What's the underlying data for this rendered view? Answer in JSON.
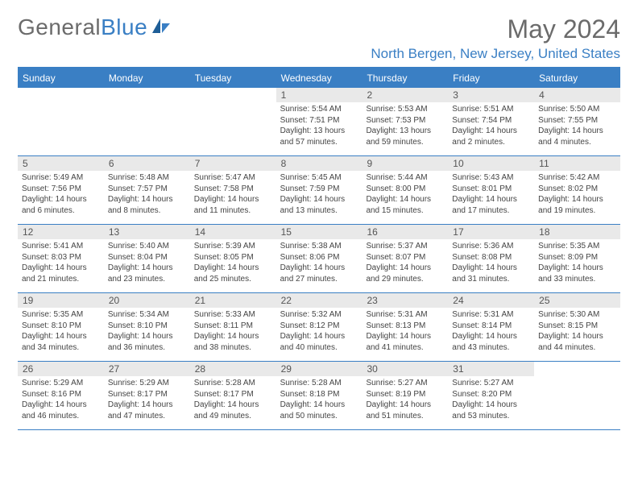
{
  "logo": {
    "text_gray": "General",
    "text_blue": "Blue"
  },
  "title": "May 2024",
  "location": "North Bergen, New Jersey, United States",
  "day_names": [
    "Sunday",
    "Monday",
    "Tuesday",
    "Wednesday",
    "Thursday",
    "Friday",
    "Saturday"
  ],
  "colors": {
    "accent": "#3a7fc4",
    "header_text": "#6b6b6b",
    "daynum_bg": "#e9e9e9"
  },
  "weeks": [
    [
      {
        "n": "",
        "lines": []
      },
      {
        "n": "",
        "lines": []
      },
      {
        "n": "",
        "lines": []
      },
      {
        "n": "1",
        "lines": [
          "Sunrise: 5:54 AM",
          "Sunset: 7:51 PM",
          "Daylight: 13 hours",
          "and 57 minutes."
        ]
      },
      {
        "n": "2",
        "lines": [
          "Sunrise: 5:53 AM",
          "Sunset: 7:53 PM",
          "Daylight: 13 hours",
          "and 59 minutes."
        ]
      },
      {
        "n": "3",
        "lines": [
          "Sunrise: 5:51 AM",
          "Sunset: 7:54 PM",
          "Daylight: 14 hours",
          "and 2 minutes."
        ]
      },
      {
        "n": "4",
        "lines": [
          "Sunrise: 5:50 AM",
          "Sunset: 7:55 PM",
          "Daylight: 14 hours",
          "and 4 minutes."
        ]
      }
    ],
    [
      {
        "n": "5",
        "lines": [
          "Sunrise: 5:49 AM",
          "Sunset: 7:56 PM",
          "Daylight: 14 hours",
          "and 6 minutes."
        ]
      },
      {
        "n": "6",
        "lines": [
          "Sunrise: 5:48 AM",
          "Sunset: 7:57 PM",
          "Daylight: 14 hours",
          "and 8 minutes."
        ]
      },
      {
        "n": "7",
        "lines": [
          "Sunrise: 5:47 AM",
          "Sunset: 7:58 PM",
          "Daylight: 14 hours",
          "and 11 minutes."
        ]
      },
      {
        "n": "8",
        "lines": [
          "Sunrise: 5:45 AM",
          "Sunset: 7:59 PM",
          "Daylight: 14 hours",
          "and 13 minutes."
        ]
      },
      {
        "n": "9",
        "lines": [
          "Sunrise: 5:44 AM",
          "Sunset: 8:00 PM",
          "Daylight: 14 hours",
          "and 15 minutes."
        ]
      },
      {
        "n": "10",
        "lines": [
          "Sunrise: 5:43 AM",
          "Sunset: 8:01 PM",
          "Daylight: 14 hours",
          "and 17 minutes."
        ]
      },
      {
        "n": "11",
        "lines": [
          "Sunrise: 5:42 AM",
          "Sunset: 8:02 PM",
          "Daylight: 14 hours",
          "and 19 minutes."
        ]
      }
    ],
    [
      {
        "n": "12",
        "lines": [
          "Sunrise: 5:41 AM",
          "Sunset: 8:03 PM",
          "Daylight: 14 hours",
          "and 21 minutes."
        ]
      },
      {
        "n": "13",
        "lines": [
          "Sunrise: 5:40 AM",
          "Sunset: 8:04 PM",
          "Daylight: 14 hours",
          "and 23 minutes."
        ]
      },
      {
        "n": "14",
        "lines": [
          "Sunrise: 5:39 AM",
          "Sunset: 8:05 PM",
          "Daylight: 14 hours",
          "and 25 minutes."
        ]
      },
      {
        "n": "15",
        "lines": [
          "Sunrise: 5:38 AM",
          "Sunset: 8:06 PM",
          "Daylight: 14 hours",
          "and 27 minutes."
        ]
      },
      {
        "n": "16",
        "lines": [
          "Sunrise: 5:37 AM",
          "Sunset: 8:07 PM",
          "Daylight: 14 hours",
          "and 29 minutes."
        ]
      },
      {
        "n": "17",
        "lines": [
          "Sunrise: 5:36 AM",
          "Sunset: 8:08 PM",
          "Daylight: 14 hours",
          "and 31 minutes."
        ]
      },
      {
        "n": "18",
        "lines": [
          "Sunrise: 5:35 AM",
          "Sunset: 8:09 PM",
          "Daylight: 14 hours",
          "and 33 minutes."
        ]
      }
    ],
    [
      {
        "n": "19",
        "lines": [
          "Sunrise: 5:35 AM",
          "Sunset: 8:10 PM",
          "Daylight: 14 hours",
          "and 34 minutes."
        ]
      },
      {
        "n": "20",
        "lines": [
          "Sunrise: 5:34 AM",
          "Sunset: 8:10 PM",
          "Daylight: 14 hours",
          "and 36 minutes."
        ]
      },
      {
        "n": "21",
        "lines": [
          "Sunrise: 5:33 AM",
          "Sunset: 8:11 PM",
          "Daylight: 14 hours",
          "and 38 minutes."
        ]
      },
      {
        "n": "22",
        "lines": [
          "Sunrise: 5:32 AM",
          "Sunset: 8:12 PM",
          "Daylight: 14 hours",
          "and 40 minutes."
        ]
      },
      {
        "n": "23",
        "lines": [
          "Sunrise: 5:31 AM",
          "Sunset: 8:13 PM",
          "Daylight: 14 hours",
          "and 41 minutes."
        ]
      },
      {
        "n": "24",
        "lines": [
          "Sunrise: 5:31 AM",
          "Sunset: 8:14 PM",
          "Daylight: 14 hours",
          "and 43 minutes."
        ]
      },
      {
        "n": "25",
        "lines": [
          "Sunrise: 5:30 AM",
          "Sunset: 8:15 PM",
          "Daylight: 14 hours",
          "and 44 minutes."
        ]
      }
    ],
    [
      {
        "n": "26",
        "lines": [
          "Sunrise: 5:29 AM",
          "Sunset: 8:16 PM",
          "Daylight: 14 hours",
          "and 46 minutes."
        ]
      },
      {
        "n": "27",
        "lines": [
          "Sunrise: 5:29 AM",
          "Sunset: 8:17 PM",
          "Daylight: 14 hours",
          "and 47 minutes."
        ]
      },
      {
        "n": "28",
        "lines": [
          "Sunrise: 5:28 AM",
          "Sunset: 8:17 PM",
          "Daylight: 14 hours",
          "and 49 minutes."
        ]
      },
      {
        "n": "29",
        "lines": [
          "Sunrise: 5:28 AM",
          "Sunset: 8:18 PM",
          "Daylight: 14 hours",
          "and 50 minutes."
        ]
      },
      {
        "n": "30",
        "lines": [
          "Sunrise: 5:27 AM",
          "Sunset: 8:19 PM",
          "Daylight: 14 hours",
          "and 51 minutes."
        ]
      },
      {
        "n": "31",
        "lines": [
          "Sunrise: 5:27 AM",
          "Sunset: 8:20 PM",
          "Daylight: 14 hours",
          "and 53 minutes."
        ]
      },
      {
        "n": "",
        "lines": []
      }
    ]
  ]
}
